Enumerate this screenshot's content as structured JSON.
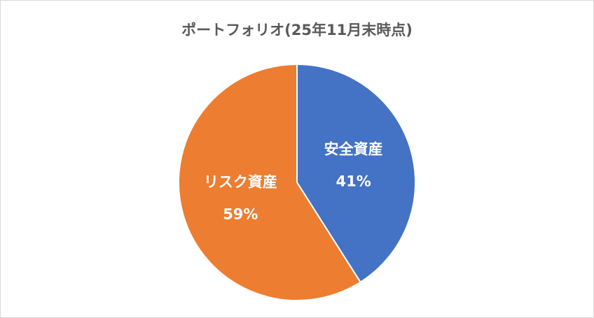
{
  "chart_data": {
    "type": "pie",
    "title": "ポートフォリオ(25年11月末時点)",
    "categories": [
      "安全資産",
      "リスク資産"
    ],
    "values": [
      41,
      59
    ],
    "value_labels": [
      "41%",
      "59%"
    ],
    "colors": [
      "#4472c4",
      "#ed7d31"
    ]
  }
}
